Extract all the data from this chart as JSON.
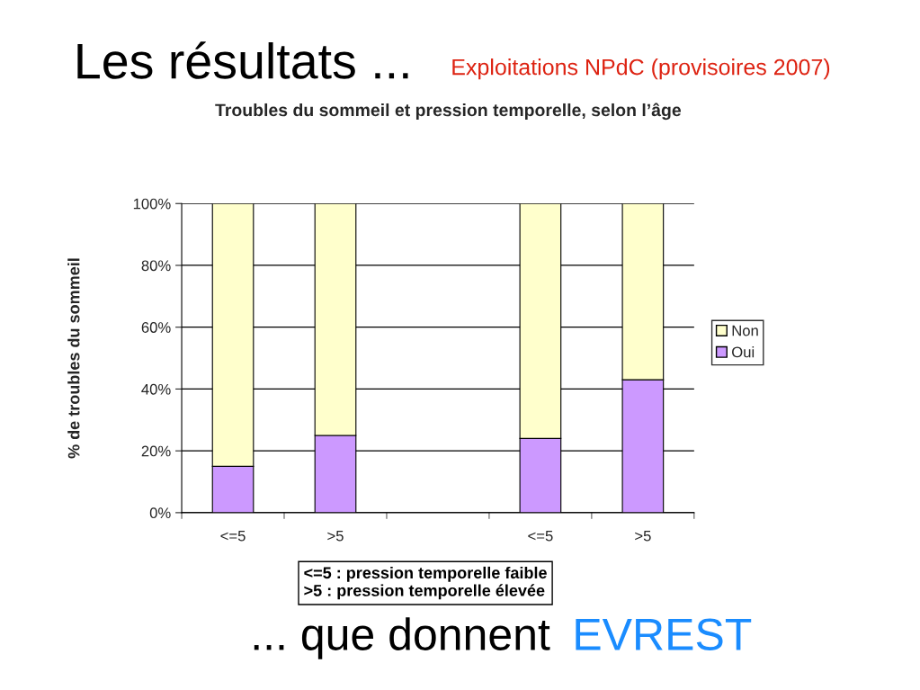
{
  "chart_data": {
    "type": "bar",
    "title": "Troubles du sommeil et pression temporelle, selon l’âge",
    "ylabel": "% de troubles du sommeil",
    "categories": [
      "<=5",
      ">5",
      null,
      "<=5",
      ">5"
    ],
    "stacked": true,
    "series": [
      {
        "name": "Oui",
        "color": "#cc99ff",
        "values": [
          15,
          25,
          null,
          24,
          43
        ]
      },
      {
        "name": "Non",
        "color": "#ffffcc",
        "values": [
          85,
          75,
          null,
          76,
          57
        ]
      }
    ],
    "ylim": [
      0,
      100
    ],
    "yticks": [
      {
        "value": 0,
        "label": "0%"
      },
      {
        "value": 20,
        "label": "20%"
      },
      {
        "value": 40,
        "label": "40%"
      },
      {
        "value": 60,
        "label": "60%"
      },
      {
        "value": 80,
        "label": "80%"
      },
      {
        "value": 100,
        "label": "100%"
      }
    ],
    "grid": "y",
    "legend": "right",
    "annotations": [
      "Les résultats ...",
      "Exploitations NPdC (provisoires 2007)",
      "<=5 : pression temporelle faible\n>5 : pression temporelle élevée",
      "... que donnent",
      "EVREST"
    ]
  }
}
